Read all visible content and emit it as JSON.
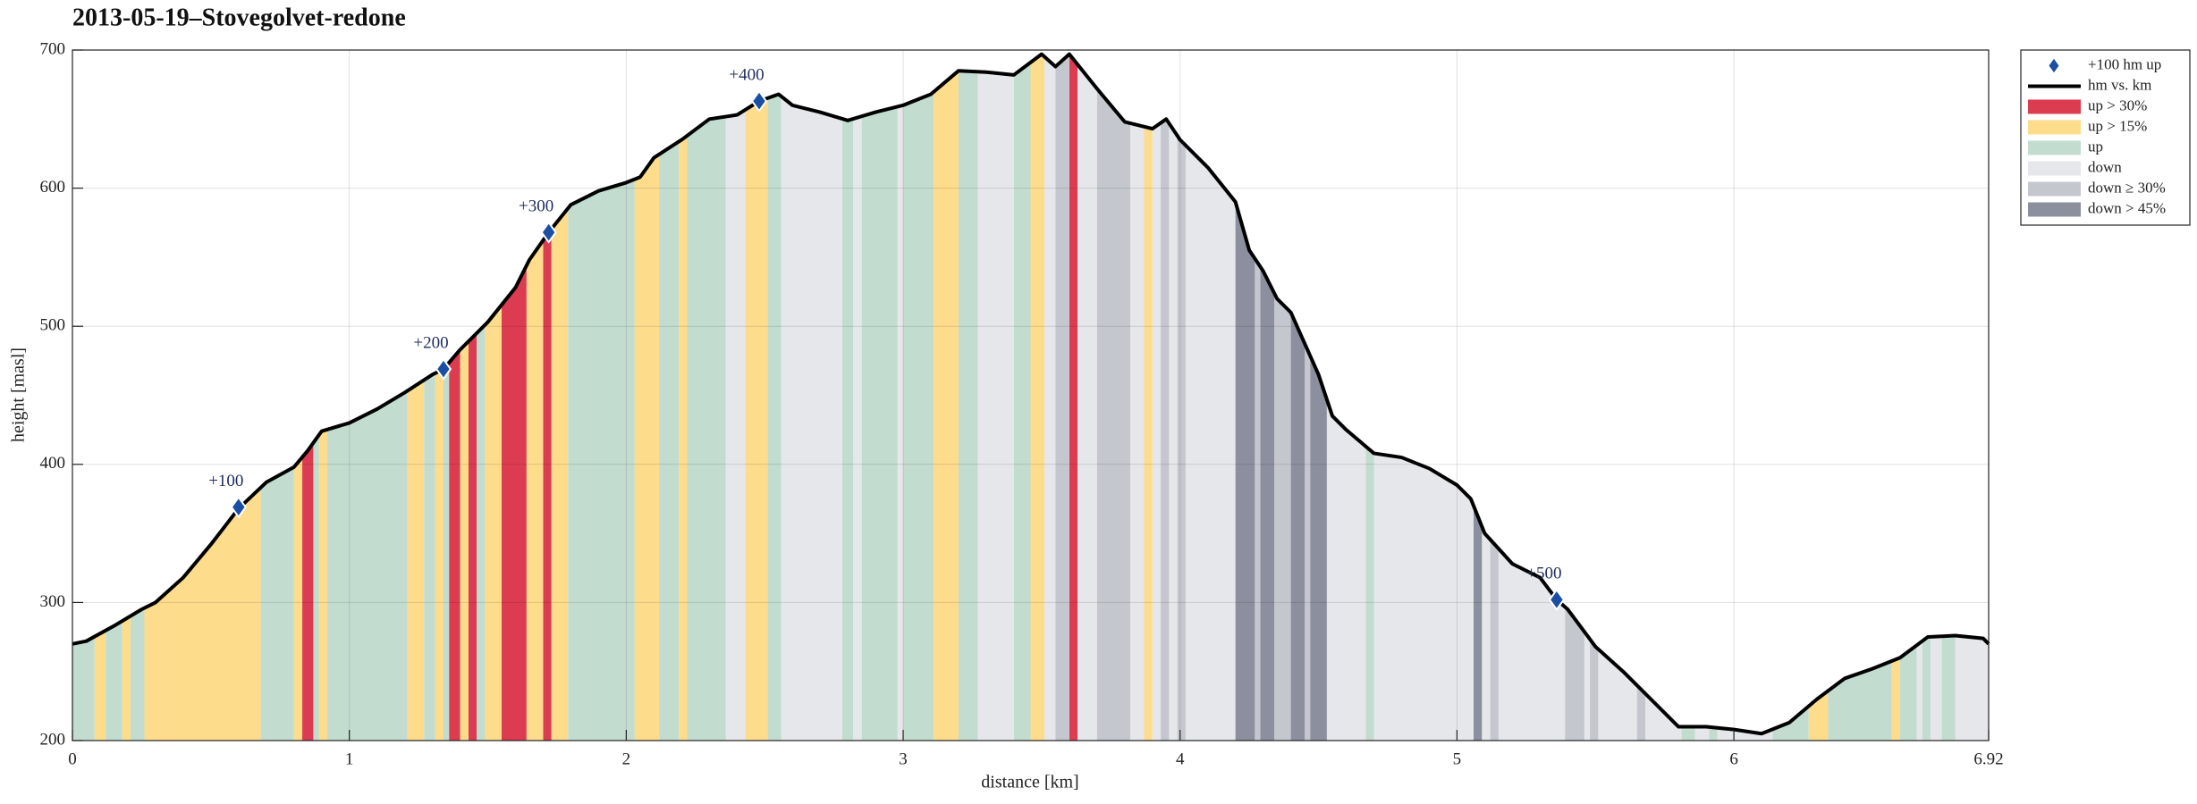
{
  "chart_data": {
    "type": "area",
    "title": "2013-05-19–Stovegolvet-redone",
    "xlabel": "distance [km]",
    "ylabel": "height [masl]",
    "x": [
      0,
      0.05,
      0.15,
      0.25,
      0.3,
      0.4,
      0.5,
      0.6,
      0.7,
      0.8,
      0.85,
      0.9,
      1.0,
      1.1,
      1.2,
      1.3,
      1.34,
      1.4,
      1.5,
      1.6,
      1.65,
      1.72,
      1.8,
      1.9,
      2.0,
      2.05,
      2.1,
      2.2,
      2.3,
      2.4,
      2.48,
      2.55,
      2.6,
      2.7,
      2.8,
      2.9,
      3.0,
      3.1,
      3.2,
      3.3,
      3.4,
      3.5,
      3.55,
      3.6,
      3.7,
      3.8,
      3.9,
      3.95,
      4.0,
      4.1,
      4.2,
      4.25,
      4.3,
      4.35,
      4.4,
      4.5,
      4.55,
      4.6,
      4.7,
      4.8,
      4.9,
      5.0,
      5.05,
      5.1,
      5.2,
      5.3,
      5.36,
      5.4,
      5.5,
      5.6,
      5.7,
      5.8,
      5.9,
      6.0,
      6.1,
      6.2,
      6.3,
      6.4,
      6.5,
      6.6,
      6.7,
      6.8,
      6.9,
      6.92
    ],
    "series": [
      {
        "name": "hm vs. km",
        "color": "#000000",
        "values": [
          270,
          272,
          283,
          295,
          300,
          318,
          342,
          368,
          387,
          398,
          410,
          424,
          430,
          440,
          452,
          465,
          469,
          483,
          503,
          528,
          548,
          568,
          588,
          598,
          604,
          608,
          622,
          635,
          650,
          653,
          663,
          668,
          660,
          655,
          649,
          655,
          660,
          668,
          685,
          684,
          682,
          697,
          688,
          697,
          672,
          648,
          643,
          650,
          635,
          615,
          590,
          555,
          540,
          520,
          510,
          465,
          435,
          425,
          408,
          405,
          397,
          385,
          375,
          350,
          328,
          318,
          302,
          295,
          268,
          250,
          230,
          210,
          210,
          208,
          205,
          213,
          230,
          245,
          252,
          260,
          275,
          276,
          274,
          270
        ]
      }
    ],
    "markers": {
      "name": "+100 hm up",
      "color": "#1a4fa3",
      "x": [
        0.6,
        1.34,
        1.72,
        2.48,
        5.36
      ],
      "values": [
        369,
        469,
        568,
        663,
        302
      ],
      "labels": [
        "+100",
        "+200",
        "+300",
        "+400",
        "+500"
      ]
    },
    "bands": [
      {
        "name": "up > 30%",
        "color": "#dc3c50",
        "ranges": [
          [
            0.83,
            0.87
          ],
          [
            1.36,
            1.4
          ],
          [
            1.43,
            1.46
          ],
          [
            1.55,
            1.64
          ],
          [
            1.7,
            1.73
          ],
          [
            3.6,
            3.63
          ]
        ]
      },
      {
        "name": "up > 15%",
        "color": "#fddc8c",
        "ranges": [
          [
            0.08,
            0.12
          ],
          [
            0.18,
            0.21
          ],
          [
            0.26,
            0.68
          ],
          [
            0.8,
            0.83
          ],
          [
            0.89,
            0.92
          ],
          [
            1.21,
            1.27
          ],
          [
            1.31,
            1.34
          ],
          [
            1.4,
            1.43
          ],
          [
            1.49,
            1.55
          ],
          [
            1.64,
            1.7
          ],
          [
            1.73,
            1.79
          ],
          [
            2.03,
            2.12
          ],
          [
            2.19,
            2.22
          ],
          [
            2.43,
            2.51
          ],
          [
            3.11,
            3.2
          ],
          [
            3.46,
            3.51
          ],
          [
            3.87,
            3.9
          ],
          [
            6.27,
            6.34
          ],
          [
            6.57,
            6.6
          ]
        ]
      },
      {
        "name": "up",
        "color": "#c2ddcf",
        "ranges": [
          [
            0,
            0.08
          ],
          [
            0.12,
            0.18
          ],
          [
            0.21,
            0.26
          ],
          [
            0.68,
            0.8
          ],
          [
            0.87,
            0.89
          ],
          [
            0.92,
            1.21
          ],
          [
            1.27,
            1.31
          ],
          [
            1.34,
            1.36
          ],
          [
            1.46,
            1.49
          ],
          [
            1.79,
            2.03
          ],
          [
            2.12,
            2.19
          ],
          [
            2.22,
            2.36
          ],
          [
            2.51,
            2.56
          ],
          [
            2.78,
            2.82
          ],
          [
            2.85,
            2.98
          ],
          [
            3.0,
            3.11
          ],
          [
            3.2,
            3.27
          ],
          [
            3.4,
            3.46
          ],
          [
            4.67,
            4.7
          ],
          [
            5.81,
            5.86
          ],
          [
            5.91,
            5.94
          ],
          [
            6.14,
            6.27
          ],
          [
            6.34,
            6.57
          ],
          [
            6.6,
            6.66
          ],
          [
            6.68,
            6.71
          ],
          [
            6.75,
            6.8
          ]
        ]
      },
      {
        "name": "down",
        "color": "#e6e7ea",
        "ranges": [
          [
            2.36,
            2.43
          ],
          [
            2.56,
            2.78
          ],
          [
            2.82,
            2.85
          ],
          [
            2.98,
            3.0
          ],
          [
            3.27,
            3.4
          ],
          [
            3.51,
            3.55
          ],
          [
            3.63,
            3.7
          ],
          [
            3.82,
            3.87
          ],
          [
            3.9,
            3.93
          ],
          [
            3.96,
            3.99
          ],
          [
            4.02,
            4.2
          ],
          [
            4.53,
            4.67
          ],
          [
            4.7,
            5.06
          ],
          [
            5.09,
            5.12
          ],
          [
            5.15,
            5.39
          ],
          [
            5.46,
            5.48
          ],
          [
            5.51,
            5.65
          ],
          [
            5.68,
            5.81
          ],
          [
            5.86,
            5.91
          ],
          [
            5.94,
            6.14
          ],
          [
            6.66,
            6.68
          ],
          [
            6.71,
            6.75
          ],
          [
            6.8,
            6.92
          ]
        ]
      },
      {
        "name": "down ≥ 30%",
        "color": "#c5c7cf",
        "ranges": [
          [
            3.55,
            3.6
          ],
          [
            3.7,
            3.82
          ],
          [
            3.93,
            3.96
          ],
          [
            3.99,
            4.02
          ],
          [
            4.27,
            4.29
          ],
          [
            4.34,
            4.4
          ],
          [
            4.45,
            4.47
          ],
          [
            5.12,
            5.15
          ],
          [
            5.39,
            5.46
          ],
          [
            5.48,
            5.51
          ],
          [
            5.65,
            5.68
          ]
        ]
      },
      {
        "name": "down > 45%",
        "color": "#8c909e",
        "ranges": [
          [
            4.2,
            4.27
          ],
          [
            4.29,
            4.34
          ],
          [
            4.4,
            4.45
          ],
          [
            4.47,
            4.53
          ],
          [
            5.06,
            5.09
          ]
        ]
      }
    ],
    "xlim": [
      0,
      6.92
    ],
    "ylim": [
      200,
      700
    ],
    "xticks": [
      0,
      1,
      2,
      3,
      4,
      5,
      6,
      6.92
    ],
    "yticks": [
      200,
      300,
      400,
      500,
      600,
      700
    ],
    "grid": true,
    "legend": "outside right"
  }
}
